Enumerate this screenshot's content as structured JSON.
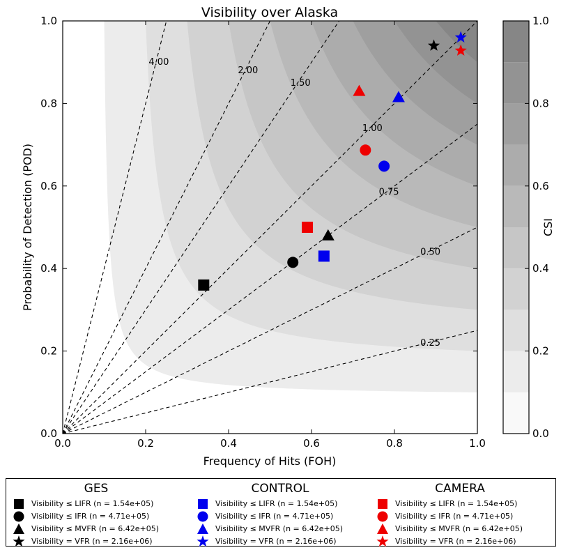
{
  "chart_data": {
    "type": "scatter",
    "title": "Visibility over Alaska",
    "xlabel": "Frequency of Hits (FOH)",
    "ylabel": "Probability of Detection (POD)",
    "xlim": [
      0.0,
      1.0
    ],
    "ylim": [
      0.0,
      1.0
    ],
    "x_ticks": [
      "0.0",
      "0.2",
      "0.4",
      "0.6",
      "0.8",
      "1.0"
    ],
    "y_ticks": [
      "0.0",
      "0.2",
      "0.4",
      "0.6",
      "0.8",
      "1.0"
    ],
    "background": "CSI filled contours",
    "contour_levels": [
      0.0,
      0.1,
      0.2,
      0.3,
      0.4,
      0.5,
      0.6,
      0.7,
      0.8,
      0.9,
      1.0
    ],
    "bias_lines": [
      {
        "label": "4.00",
        "value": 4.0
      },
      {
        "label": "2.00",
        "value": 2.0
      },
      {
        "label": "1.50",
        "value": 1.5
      },
      {
        "label": "1.00",
        "value": 1.0
      },
      {
        "label": "0.75",
        "value": 0.75
      },
      {
        "label": "0.50",
        "value": 0.5
      },
      {
        "label": "0.25",
        "value": 0.25
      }
    ],
    "colorbar": {
      "label": "CSI",
      "ticks": [
        "0.0",
        "0.2",
        "0.4",
        "0.6",
        "0.8",
        "1.0"
      ]
    },
    "series": [
      {
        "group": "GES",
        "color": "#000000",
        "points": [
          {
            "category": "LIFR",
            "marker": "square",
            "x": 0.34,
            "y": 0.36
          },
          {
            "category": "IFR",
            "marker": "circle",
            "x": 0.555,
            "y": 0.415
          },
          {
            "category": "MVFR",
            "marker": "triangle",
            "x": 0.64,
            "y": 0.48
          },
          {
            "category": "VFR",
            "marker": "star",
            "x": 0.895,
            "y": 0.94
          }
        ]
      },
      {
        "group": "CONTROL",
        "color": "#0000ee",
        "points": [
          {
            "category": "LIFR",
            "marker": "square",
            "x": 0.63,
            "y": 0.43
          },
          {
            "category": "IFR",
            "marker": "circle",
            "x": 0.775,
            "y": 0.648
          },
          {
            "category": "MVFR",
            "marker": "triangle",
            "x": 0.81,
            "y": 0.815
          },
          {
            "category": "VFR",
            "marker": "star",
            "x": 0.96,
            "y": 0.96
          }
        ]
      },
      {
        "group": "CAMERA",
        "color": "#ee0000",
        "points": [
          {
            "category": "LIFR",
            "marker": "square",
            "x": 0.59,
            "y": 0.5
          },
          {
            "category": "IFR",
            "marker": "circle",
            "x": 0.73,
            "y": 0.687
          },
          {
            "category": "MVFR",
            "marker": "triangle",
            "x": 0.715,
            "y": 0.83
          },
          {
            "category": "VFR",
            "marker": "star",
            "x": 0.96,
            "y": 0.928
          }
        ]
      }
    ]
  },
  "legend": {
    "groups": [
      {
        "title": "GES",
        "color": "#000000",
        "entries": [
          {
            "marker": "square",
            "label": "Visibility ≤ LIFR (n = 1.54e+05)"
          },
          {
            "marker": "circle",
            "label": "Visibility ≤ IFR (n = 4.71e+05)"
          },
          {
            "marker": "triangle",
            "label": "Visibility ≤ MVFR (n = 6.42e+05)"
          },
          {
            "marker": "star",
            "label": "Visibility = VFR (n = 2.16e+06)"
          }
        ]
      },
      {
        "title": "CONTROL",
        "color": "#0000ee",
        "entries": [
          {
            "marker": "square",
            "label": "Visibility ≤ LIFR (n = 1.54e+05)"
          },
          {
            "marker": "circle",
            "label": "Visibility ≤ IFR (n = 4.71e+05)"
          },
          {
            "marker": "triangle",
            "label": "Visibility ≤ MVFR (n = 6.42e+05)"
          },
          {
            "marker": "star",
            "label": "Visibility = VFR (n = 2.16e+06)"
          }
        ]
      },
      {
        "title": "CAMERA",
        "color": "#ee0000",
        "entries": [
          {
            "marker": "square",
            "label": "Visibility ≤ LIFR (n = 1.54e+05)"
          },
          {
            "marker": "circle",
            "label": "Visibility ≤ IFR (n = 4.71e+05)"
          },
          {
            "marker": "triangle",
            "label": "Visibility ≤ MVFR (n = 6.42e+05)"
          },
          {
            "marker": "star",
            "label": "Visibility = VFR (n = 2.16e+06)"
          }
        ]
      }
    ]
  }
}
